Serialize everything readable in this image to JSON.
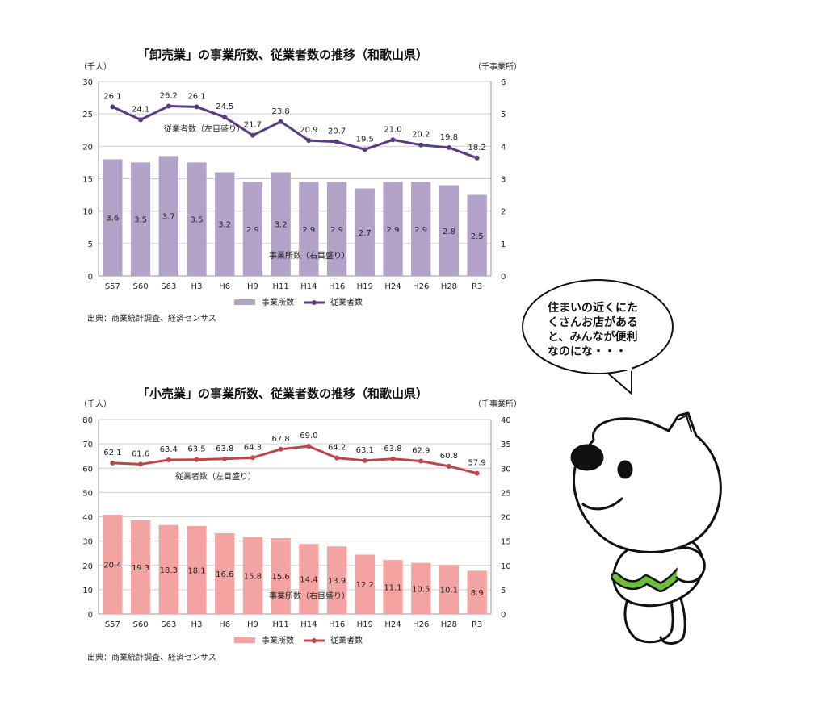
{
  "chart_data": [
    {
      "type": "bar",
      "title": "「卸売業」の事業所数、従業者数の推移（和歌山県）",
      "left_unit": "（千人）",
      "right_unit": "（千事業所）",
      "categories": [
        "S57",
        "S60",
        "S63",
        "H3",
        "H6",
        "H9",
        "H11",
        "H14",
        "H16",
        "H19",
        "H24",
        "H26",
        "H28",
        "R3"
      ],
      "ylim_left": [
        0,
        30
      ],
      "yticks_left": [
        0,
        5,
        10,
        15,
        20,
        25,
        30
      ],
      "ylim_right": [
        0,
        6
      ],
      "yticks_right": [
        0,
        1,
        2,
        3,
        4,
        5,
        6
      ],
      "grid": true,
      "series": [
        {
          "name": "事業所数",
          "type": "bar",
          "axis": "right",
          "color": "#b3a2c7",
          "values": [
            3.6,
            3.5,
            3.7,
            3.5,
            3.2,
            2.9,
            3.2,
            2.9,
            2.9,
            2.7,
            2.9,
            2.9,
            2.8,
            2.5
          ],
          "labels": [
            "3.6",
            "3.5",
            "3.7",
            "3.5",
            "3.2",
            "2.9",
            "3.2",
            "2.9",
            "2.9",
            "2.7",
            "2.9",
            "2.9",
            "2.8",
            "2.5"
          ]
        },
        {
          "name": "従業者数",
          "type": "line",
          "axis": "left",
          "color": "#5b3a86",
          "values": [
            26.1,
            24.1,
            26.2,
            26.1,
            24.5,
            21.7,
            23.8,
            20.9,
            20.7,
            19.5,
            21.0,
            20.2,
            19.8,
            18.2
          ],
          "labels": [
            "26.1",
            "24.1",
            "26.2",
            "26.1",
            "24.5",
            "21.7",
            "23.8",
            "20.9",
            "20.7",
            "19.5",
            "21.0",
            "20.2",
            "19.8",
            "18.2"
          ]
        }
      ],
      "line_annotation": "従業者数（左目盛り）",
      "bar_annotation": "事業所数（右目盛り）",
      "legend": "bottom",
      "source": "出典：商業統計調査、経済センサス"
    },
    {
      "type": "bar",
      "title": "「小売業」の事業所数、従業者数の推移（和歌山県）",
      "left_unit": "（千人）",
      "right_unit": "（千事業所）",
      "categories": [
        "S57",
        "S60",
        "S63",
        "H3",
        "H6",
        "H9",
        "H11",
        "H14",
        "H16",
        "H19",
        "H24",
        "H26",
        "H28",
        "R3"
      ],
      "ylim_left": [
        0,
        80
      ],
      "yticks_left": [
        0,
        10,
        20,
        30,
        40,
        50,
        60,
        70,
        80
      ],
      "ylim_right": [
        0,
        40
      ],
      "yticks_right": [
        0,
        5,
        10,
        15,
        20,
        25,
        30,
        35,
        40
      ],
      "grid": true,
      "series": [
        {
          "name": "事業所数",
          "type": "bar",
          "axis": "right",
          "color": "#f4a3a3",
          "values": [
            20.4,
            19.3,
            18.3,
            18.1,
            16.6,
            15.8,
            15.6,
            14.4,
            13.9,
            12.2,
            11.1,
            10.5,
            10.1,
            8.9
          ],
          "labels": [
            "20.4",
            "19.3",
            "18.3",
            "18.1",
            "16.6",
            "15.8",
            "15.6",
            "14.4",
            "13.9",
            "12.2",
            "11.1",
            "10.5",
            "10.1",
            "8.9"
          ]
        },
        {
          "name": "従業者数",
          "type": "line",
          "axis": "left",
          "color": "#c0454a",
          "values": [
            62.1,
            61.6,
            63.4,
            63.5,
            63.8,
            64.3,
            67.8,
            69.0,
            64.2,
            63.1,
            63.8,
            62.9,
            60.8,
            57.9
          ],
          "labels": [
            "62.1",
            "61.6",
            "63.4",
            "63.5",
            "63.8",
            "64.3",
            "67.8",
            "69.0",
            "64.2",
            "63.1",
            "63.8",
            "62.9",
            "60.8",
            "57.9"
          ]
        }
      ],
      "line_annotation": "従業者数（左目盛り）",
      "bar_annotation": "事業所数（右目盛り）",
      "legend": "bottom",
      "source": "出典：商業統計調査、経済センサス"
    }
  ],
  "speech_bubble": {
    "lines": [
      "住まいの近くにた",
      "くさんお店がある",
      "と、みんなが便利",
      "なのにな・・・"
    ]
  }
}
